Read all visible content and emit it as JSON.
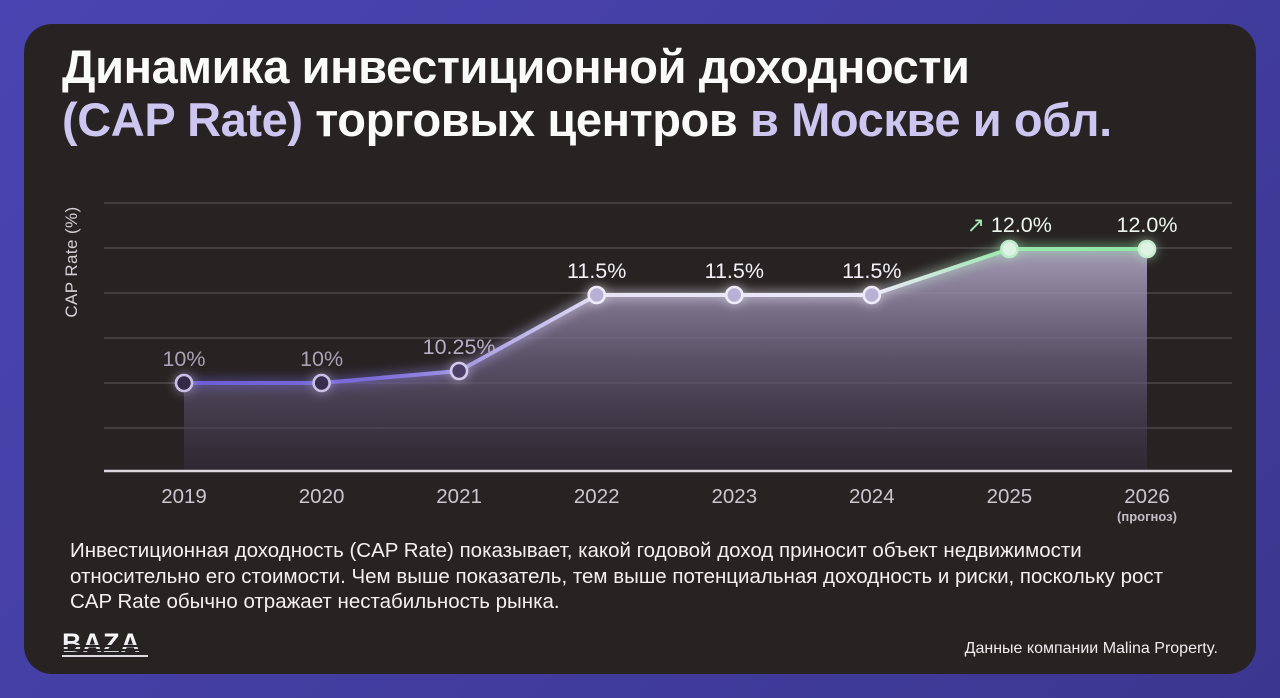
{
  "header": {
    "title_line1": "Динамика инвестиционной доходности",
    "title_line2_accent1": "(CAP Rate)",
    "title_line2_white": " торговых центров ",
    "title_line2_accent2": "в Москве и обл.",
    "accent_color": "#cdc6f0"
  },
  "chart_data": {
    "type": "area",
    "title": "Динамика инвестиционной доходности (CAP Rate) торговых центров в Москве и обл.",
    "ylabel": "CAP Rate (%)",
    "xlabel": "",
    "categories": [
      "2019",
      "2020",
      "2021",
      "2022",
      "2023",
      "2024",
      "2025",
      "2026"
    ],
    "category_note": {
      "index": 7,
      "text": "(прогноз)"
    },
    "values": [
      10,
      10,
      10.25,
      11.5,
      11.5,
      11.5,
      12.0,
      12.0
    ],
    "point_labels": [
      "10%",
      "10%",
      "10.25%",
      "11.5%",
      "11.5%",
      "11.5%",
      "12.0%",
      "12.0%"
    ],
    "trend_arrow": {
      "index": 6,
      "glyph": "↗"
    },
    "ylim": [
      9,
      12.5
    ],
    "grid": true,
    "legend": false,
    "colors": {
      "background": "#272322",
      "frame": "#433da6",
      "grid": "rgba(210,204,214,0.27)",
      "axis": "#dcd9de",
      "year_label": "#cac6cf",
      "note_label": "#c2bec6",
      "arrow": "#a9e9b7",
      "line_stops": [
        [
          "0%",
          "#6c5cd4"
        ],
        [
          "20%",
          "#7b6dd9"
        ],
        [
          "30%",
          "#a79be4"
        ],
        [
          "44%",
          "#e7e3f5"
        ],
        [
          "72%",
          "#ece9f7"
        ],
        [
          "86%",
          "#97e8ab"
        ],
        [
          "100%",
          "#90e7a6"
        ]
      ],
      "area_top": "rgba(175,166,193,0.92)",
      "area_mid": "rgba(110,99,130,0.72)",
      "area_bottom": "rgba(54,46,66,0.5)",
      "point_stroke": [
        "#c9c0e6",
        "#c9c0e6",
        "#d3cbec",
        "#efecf8",
        "#efecf8",
        "#efecf8",
        "#bdecc8",
        "#c6eecf"
      ],
      "point_fill": [
        "#322a46",
        "#372e4d",
        "#4a3f66",
        "#b9b0d6",
        "#b9b0d6",
        "#b9b0d6",
        "#def3e3",
        "#def3e3"
      ],
      "label_color": [
        "#a9a1b6",
        "#a9a1b6",
        "#b6aec6",
        "#f3f1f7",
        "#f3f1f7",
        "#f3f1f7",
        "#edf7ee",
        "#edf7ee"
      ]
    }
  },
  "footer": {
    "lines": [
      "Инвестиционная доходность (CAP Rate) показывает, какой годовой доход приносит объект недвижимости",
      "относительно его стоимости. Чем выше показатель, тем выше потенциальная доходность и риски, поскольку рост",
      "CAP Rate обычно отражает нестабильность рынка."
    ]
  },
  "branding": {
    "logo": "BAZA",
    "source": "Данные компании Malina Property."
  }
}
